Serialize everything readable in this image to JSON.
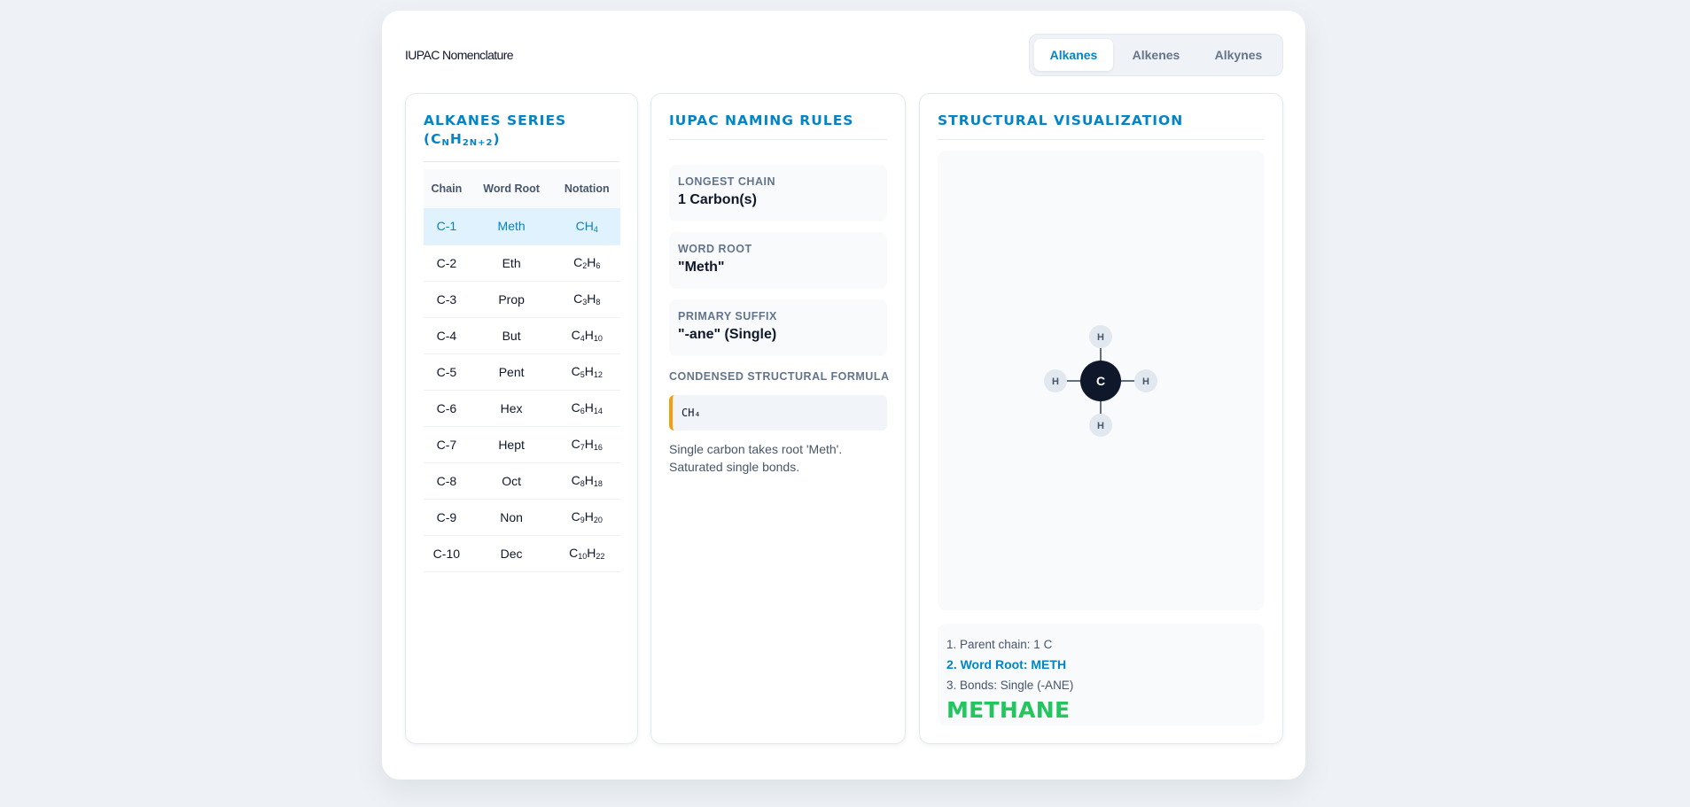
{
  "app": {
    "title": "IUPAC Nomenclature"
  },
  "tabs": [
    {
      "label": "Alkanes",
      "active": true
    },
    {
      "label": "Alkenes",
      "active": false
    },
    {
      "label": "Alkynes",
      "active": false
    }
  ],
  "series": {
    "title": "Alkanes Series",
    "formula": "(CNH2N+2)",
    "headers": [
      "Chain",
      "Word Root",
      "Notation"
    ],
    "rows": [
      {
        "chain": "C-1",
        "root": "Meth",
        "notation": "CH4",
        "active": true
      },
      {
        "chain": "C-2",
        "root": "Eth",
        "notation": "C2H6"
      },
      {
        "chain": "C-3",
        "root": "Prop",
        "notation": "C3H8"
      },
      {
        "chain": "C-4",
        "root": "But",
        "notation": "C4H10"
      },
      {
        "chain": "C-5",
        "root": "Pent",
        "notation": "C5H12"
      },
      {
        "chain": "C-6",
        "root": "Hex",
        "notation": "C6H14"
      },
      {
        "chain": "C-7",
        "root": "Hept",
        "notation": "C7H16"
      },
      {
        "chain": "C-8",
        "root": "Oct",
        "notation": "C8H18"
      },
      {
        "chain": "C-9",
        "root": "Non",
        "notation": "C9H20"
      },
      {
        "chain": "C-10",
        "root": "Dec",
        "notation": "C10H22"
      }
    ]
  },
  "rules": {
    "title": "IUPAC Naming Rules",
    "longest_chain": {
      "label": "Longest Chain",
      "value": "1 Carbon(s)"
    },
    "word_root": {
      "label": "Word Root",
      "value": "\"Meth\""
    },
    "primary_suffix": {
      "label": "Primary Suffix",
      "value": "\"-ane\" (Single)"
    },
    "condensed_label": "Condensed Structural Formula",
    "condensed_formula": "CH₄",
    "note": "Single carbon takes root 'Meth'. Saturated single bonds."
  },
  "visualization": {
    "title": "Structural Visualization",
    "carbon_label": "C",
    "hydrogen_label": "H",
    "steps": [
      {
        "text": "1. Parent chain: 1 C",
        "active": false
      },
      {
        "text": "2. Word Root: METH",
        "active": true
      },
      {
        "text": "3. Bonds: Single (-ANE)",
        "active": false
      }
    ],
    "result": "METHANE"
  },
  "colors": {
    "accent": "#0284c7",
    "active_row_bg": "#e0f2fe",
    "formula_border": "#f59e0b",
    "result_green": "#22c55e",
    "carbon_fill": "#0f172a",
    "hydrogen_fill": "#e2e8f0"
  },
  "icons": {
    "carbon_atom": "carbon-atom-icon",
    "hydrogen_atom": "hydrogen-atom-icon"
  }
}
